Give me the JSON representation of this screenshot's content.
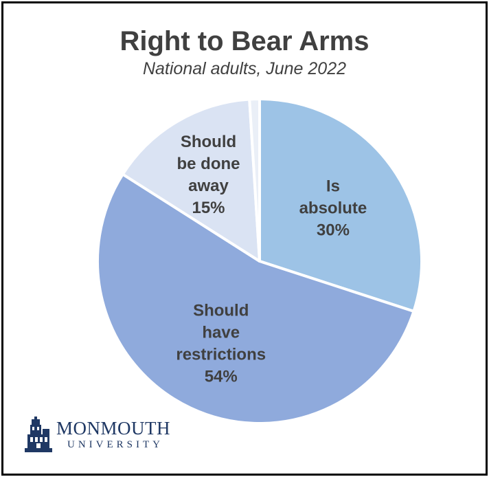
{
  "chart_data": {
    "type": "pie",
    "title": "Right to Bear Arms",
    "subtitle": "National adults, June 2022",
    "start_angle_deg": 0,
    "direction": "clockwise",
    "slices": [
      {
        "label_lines": [
          "Is",
          "absolute",
          "30%"
        ],
        "value": 30,
        "color": "#9dc3e6"
      },
      {
        "label_lines": [
          "Should",
          "have",
          "restrictions",
          "54%"
        ],
        "value": 54,
        "color": "#8faadc"
      },
      {
        "label_lines": [
          "Should",
          "be done",
          "away",
          "15%"
        ],
        "value": 15,
        "color": "#dae3f3"
      },
      {
        "label_lines": [],
        "value": 1,
        "color": "#eaeff7"
      }
    ],
    "legend": "none"
  },
  "branding": {
    "name": "MONMOUTH",
    "sub": "UNIVERSITY",
    "color": "#1f3864"
  }
}
